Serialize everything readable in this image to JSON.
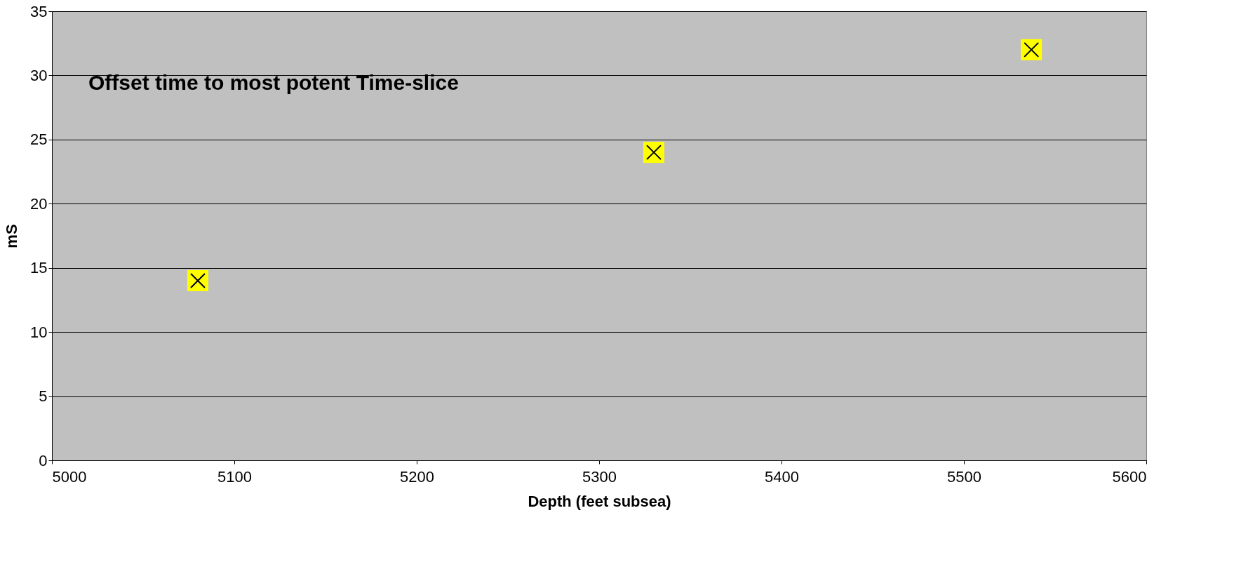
{
  "chart_data": {
    "type": "scatter",
    "xlabel": "Depth (feet subsea)",
    "ylabel": "mS",
    "annotations": [
      "Offset time to most potent Time-slice"
    ],
    "x": [
      5080,
      5330,
      5537
    ],
    "series": [
      {
        "color": "#ffff00",
        "values": [
          14,
          24,
          32
        ]
      }
    ],
    "xlim": [
      5000,
      5600
    ],
    "xticks": [
      5000,
      5100,
      5200,
      5300,
      5400,
      5500,
      5600
    ],
    "ylim": [
      0,
      35
    ],
    "yticks": [
      0,
      5,
      10,
      15,
      20,
      25,
      30,
      35
    ],
    "grid": "y",
    "marker": "square"
  }
}
